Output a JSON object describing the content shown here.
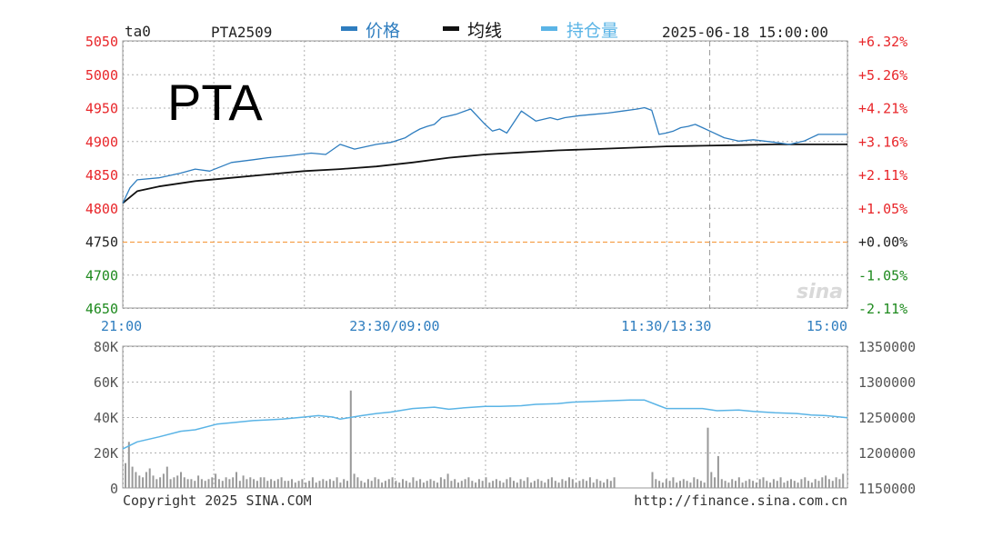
{
  "header": {
    "symbol": "ta0",
    "contract": "PTA2509",
    "legend": [
      {
        "label": "价格",
        "color": "#2e7dbf"
      },
      {
        "label": "均线",
        "color": "#111111"
      },
      {
        "label": "持仓量",
        "color": "#5ab4e6"
      }
    ],
    "datetime": "2025-06-18 15:00:00"
  },
  "overlay_title": "PTA",
  "footer": {
    "copyright": "Copyright 2025 SINA.COM",
    "url": "http://finance.sina.com.cn"
  },
  "watermark": "sina",
  "colors": {
    "up": "#e8262a",
    "down": "#1e8a1e",
    "neutral": "#222222",
    "grid": "#b0b0b0",
    "baseline": "#f5a04a",
    "volume": "#999999"
  },
  "chart_data": [
    {
      "type": "line",
      "title": "",
      "xlabel": "",
      "ylabel": "",
      "x_tick_labels": [
        "21:00",
        "23:30/09:00",
        "11:30/13:30",
        "15:00"
      ],
      "ylim": [
        4650,
        5050
      ],
      "y_ticks": [
        5050,
        5000,
        4950,
        4900,
        4850,
        4800,
        4750,
        4700,
        4650
      ],
      "pct_ticks": [
        "+6.32%",
        "+5.26%",
        "+4.21%",
        "+3.16%",
        "+2.11%",
        "+1.05%",
        "+0.00%",
        "-1.05%",
        "-2.11%"
      ],
      "reference_price": 4750,
      "series": [
        {
          "name": "价格",
          "color": "#2e7dbf",
          "x": [
            0,
            0.01,
            0.02,
            0.05,
            0.08,
            0.1,
            0.12,
            0.15,
            0.18,
            0.2,
            0.23,
            0.26,
            0.28,
            0.3,
            0.32,
            0.35,
            0.37,
            0.39,
            0.4,
            0.41,
            0.42,
            0.43,
            0.44,
            0.46,
            0.48,
            0.5,
            0.51,
            0.52,
            0.53,
            0.55,
            0.57,
            0.59,
            0.6,
            0.61,
            0.63,
            0.65,
            0.67,
            0.69,
            0.71,
            0.72,
            0.73,
            0.74,
            0.75,
            0.76,
            0.77,
            0.78,
            0.79,
            0.8,
            0.81,
            0.83,
            0.85,
            0.87,
            0.9,
            0.92,
            0.94,
            0.96,
            1.0
          ],
          "values": [
            4807,
            4830,
            4842,
            4845,
            4852,
            4858,
            4855,
            4868,
            4872,
            4875,
            4878,
            4882,
            4880,
            4895,
            4888,
            4895,
            4898,
            4905,
            4912,
            4918,
            4922,
            4925,
            4935,
            4940,
            4948,
            4925,
            4915,
            4918,
            4912,
            4945,
            4930,
            4935,
            4932,
            4935,
            4938,
            4940,
            4942,
            4945,
            4948,
            4950,
            4946,
            4910,
            4912,
            4915,
            4920,
            4922,
            4925,
            4920,
            4915,
            4905,
            4900,
            4902,
            4898,
            4895,
            4900,
            4910,
            4910
          ]
        },
        {
          "name": "均线",
          "color": "#111111",
          "x": [
            0,
            0.02,
            0.05,
            0.1,
            0.15,
            0.2,
            0.25,
            0.3,
            0.35,
            0.4,
            0.45,
            0.5,
            0.55,
            0.6,
            0.65,
            0.7,
            0.75,
            0.8,
            0.85,
            0.9,
            0.95,
            1.0
          ],
          "values": [
            4807,
            4825,
            4832,
            4840,
            4845,
            4850,
            4855,
            4858,
            4862,
            4868,
            4875,
            4880,
            4883,
            4886,
            4888,
            4890,
            4892,
            4893,
            4894,
            4895,
            4895,
            4895
          ]
        }
      ]
    },
    {
      "type": "bar",
      "title": "",
      "xlabel": "",
      "ylabel": "",
      "ylim": [
        0,
        80000
      ],
      "y_ticks": [
        "80K",
        "60K",
        "40K",
        "20K",
        "0"
      ],
      "oi_ylim": [
        1150000,
        1350000
      ],
      "oi_ticks": [
        "1350000",
        "1300000",
        "1250000",
        "1200000",
        "1150000"
      ],
      "volume_note": "approximate per-minute volume",
      "volume": [
        14000,
        26000,
        12000,
        9000,
        7000,
        6000,
        9000,
        11000,
        7000,
        5000,
        6000,
        8000,
        12000,
        5000,
        6000,
        7000,
        9000,
        6000,
        5000,
        5000,
        4000,
        7000,
        5000,
        4000,
        5000,
        6000,
        8000,
        5000,
        4000,
        6000,
        5000,
        6000,
        9000,
        4000,
        7000,
        5000,
        6000,
        5000,
        4000,
        6000,
        6000,
        4000,
        5000,
        4000,
        5000,
        6000,
        4000,
        4000,
        5000,
        3000,
        4000,
        5000,
        3000,
        4000,
        6000,
        3000,
        4000,
        5000,
        4000,
        5000,
        4000,
        6000,
        3000,
        5000,
        4000,
        55000,
        8000,
        6000,
        4000,
        3000,
        5000,
        4000,
        6000,
        5000,
        3000,
        4000,
        5000,
        6000,
        4000,
        3000,
        5000,
        4000,
        3000,
        6000,
        4000,
        5000,
        3000,
        4000,
        5000,
        4000,
        3000,
        6000,
        5000,
        8000,
        4000,
        5000,
        3000,
        4000,
        5000,
        6000,
        4000,
        3000,
        5000,
        4000,
        6000,
        3000,
        4000,
        5000,
        4000,
        3000,
        5000,
        6000,
        4000,
        3000,
        5000,
        4000,
        6000,
        3000,
        4000,
        5000,
        4000,
        3000,
        5000,
        6000,
        4000,
        3000,
        5000,
        4000,
        6000,
        5000,
        3000,
        4000,
        5000,
        4000,
        6000,
        3000,
        5000,
        4000,
        3000,
        5000,
        4000,
        6000,
        0,
        0,
        0,
        0,
        0,
        0,
        0,
        0,
        0,
        0,
        9000,
        5000,
        4000,
        3000,
        5000,
        4000,
        6000,
        3000,
        4000,
        5000,
        4000,
        3000,
        6000,
        5000,
        4000,
        3000,
        34000,
        9000,
        6000,
        18000,
        5000,
        4000,
        3000,
        5000,
        4000,
        6000,
        3000,
        4000,
        5000,
        4000,
        3000,
        5000,
        6000,
        4000,
        3000,
        5000,
        4000,
        6000,
        3000,
        4000,
        5000,
        4000,
        3000,
        5000,
        6000,
        4000,
        3000,
        5000,
        4000,
        6000,
        7000,
        5000,
        4000,
        6000,
        5000,
        8000
      ],
      "series": [
        {
          "name": "持仓量",
          "color": "#5ab4e6",
          "x": [
            0,
            0.02,
            0.05,
            0.08,
            0.1,
            0.13,
            0.15,
            0.18,
            0.2,
            0.22,
            0.25,
            0.27,
            0.29,
            0.3,
            0.33,
            0.35,
            0.37,
            0.4,
            0.43,
            0.45,
            0.47,
            0.5,
            0.52,
            0.55,
            0.57,
            0.6,
            0.62,
            0.65,
            0.67,
            0.7,
            0.72,
            0.74,
            0.75,
            0.77,
            0.8,
            0.82,
            0.85,
            0.87,
            0.9,
            0.93,
            0.95,
            0.97,
            1.0
          ],
          "values": [
            1205000,
            1215000,
            1222000,
            1230000,
            1232000,
            1240000,
            1242000,
            1245000,
            1246000,
            1247000,
            1250000,
            1252000,
            1250000,
            1247000,
            1252000,
            1255000,
            1257000,
            1262000,
            1264000,
            1261000,
            1263000,
            1265000,
            1265000,
            1266000,
            1268000,
            1269000,
            1271000,
            1272000,
            1273000,
            1274000,
            1274000,
            1266000,
            1262000,
            1262000,
            1262000,
            1259000,
            1260000,
            1258000,
            1256000,
            1255000,
            1253000,
            1252000,
            1249000
          ]
        }
      ]
    }
  ]
}
